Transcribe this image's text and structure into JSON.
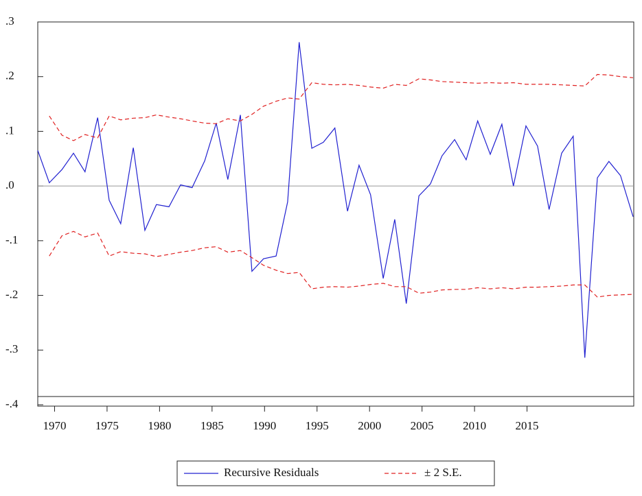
{
  "chart_data": {
    "type": "line",
    "x": [
      1968.4,
      1969.5,
      1970.7,
      1971.8,
      1972.9,
      1974.1,
      1975.2,
      1976.3,
      1977.5,
      1978.6,
      1979.7,
      1980.9,
      1982.0,
      1983.1,
      1984.3,
      1985.4,
      1986.5,
      1987.7,
      1988.8,
      1989.9,
      1991.1,
      1992.2,
      1993.3,
      1994.5,
      1995.6,
      1996.7,
      1997.9,
      1999.0,
      2000.1,
      2001.3,
      2002.4,
      2003.5,
      2004.7,
      2005.8,
      2006.9,
      2008.1,
      2009.2,
      2010.3,
      2011.5,
      2012.6,
      2013.7,
      2014.9,
      2016.0,
      2017.1,
      2018.3,
      2019.4,
      2020.5,
      2021.7,
      2022.8,
      2023.9,
      2025.1
    ],
    "series": [
      {
        "name": "Recursive Residuals",
        "color": "#2020d0",
        "dash": false,
        "values": [
          0.065,
          0.006,
          0.03,
          0.06,
          0.026,
          0.125,
          -0.026,
          -0.069,
          0.07,
          -0.081,
          -0.034,
          -0.038,
          0.002,
          -0.003,
          0.046,
          0.115,
          0.012,
          0.13,
          -0.156,
          -0.133,
          -0.128,
          -0.029,
          0.263,
          0.069,
          0.08,
          0.106,
          -0.046,
          0.038,
          -0.016,
          -0.169,
          -0.061,
          -0.215,
          -0.018,
          0.004,
          0.055,
          0.085,
          0.048,
          0.119,
          0.058,
          0.113,
          0,
          0.11,
          0.073,
          -0.043,
          0.06,
          0.091,
          -0.314,
          0.015,
          0.045,
          0.019,
          -0.056
        ]
      },
      {
        "name": "± 2 S.E.",
        "color": "#e02020",
        "dash": true,
        "values": [
          null,
          0.128,
          0.093,
          0.083,
          0.094,
          0.088,
          0.128,
          0.121,
          0.124,
          0.125,
          0.13,
          0.126,
          0.123,
          0.119,
          0.115,
          0.114,
          0.123,
          0.119,
          0.131,
          0.146,
          0.155,
          0.161,
          0.159,
          0.189,
          0.186,
          0.185,
          0.186,
          0.184,
          0.181,
          0.179,
          0.186,
          0.184,
          0.196,
          0.194,
          0.191,
          0.19,
          0.189,
          0.188,
          0.189,
          0.188,
          0.189,
          0.186,
          0.186,
          0.186,
          0.185,
          0.184,
          0.183,
          0.204,
          0.203,
          0.2,
          0.198
        ]
      },
      {
        "color": "#e02020",
        "dash": true,
        "values": [
          null,
          -0.128,
          -0.091,
          -0.083,
          -0.093,
          -0.086,
          -0.128,
          -0.12,
          -0.123,
          -0.124,
          -0.129,
          -0.125,
          -0.121,
          -0.118,
          -0.113,
          -0.111,
          -0.121,
          -0.118,
          -0.131,
          -0.145,
          -0.154,
          -0.16,
          -0.158,
          -0.188,
          -0.185,
          -0.184,
          -0.185,
          -0.183,
          -0.18,
          -0.178,
          -0.184,
          -0.184,
          -0.196,
          -0.194,
          -0.19,
          -0.189,
          -0.189,
          -0.186,
          -0.188,
          -0.186,
          -0.188,
          -0.185,
          -0.185,
          -0.184,
          -0.183,
          -0.181,
          -0.181,
          -0.203,
          -0.2,
          -0.199,
          -0.198
        ]
      }
    ],
    "xlim": [
      1968.4,
      2025.1
    ],
    "xticks": [
      1970,
      1975,
      1980,
      1985,
      1990,
      1995,
      2000,
      2005,
      2010,
      2015
    ],
    "ylim": [
      -0.4,
      0.3
    ],
    "yticks": [
      {
        "value": 0.3,
        "label": ".3"
      },
      {
        "value": 0.2,
        "label": ".2"
      },
      {
        "value": 0.1,
        "label": ".1"
      },
      {
        "value": 0,
        "label": ".0"
      },
      {
        "value": -0.1,
        "label": "-.1"
      },
      {
        "value": -0.2,
        "label": "-.2"
      },
      {
        "value": -0.3,
        "label": "-.3"
      },
      {
        "value": -0.4,
        "label": "-.4"
      }
    ],
    "zero_line": true
  }
}
